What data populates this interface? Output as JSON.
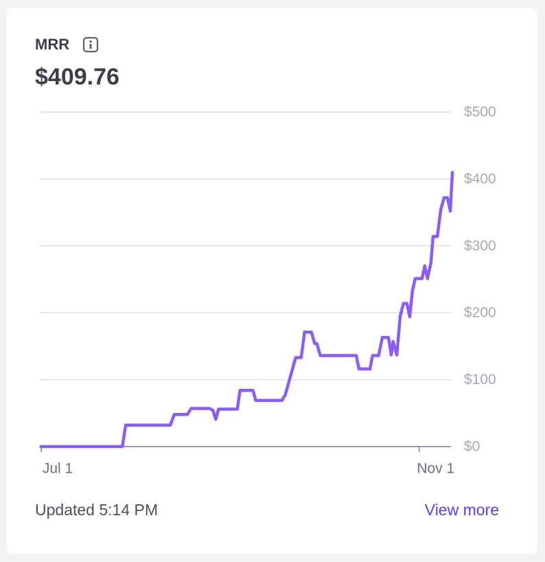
{
  "chart_data": {
    "type": "line",
    "title": "MRR",
    "subtitle": "$409.76",
    "x": [
      0,
      26.4,
      27.5,
      42,
      43.3,
      47.6,
      48.8,
      54.8,
      55.9,
      56.8,
      57.7,
      63.8,
      64.7,
      68.9,
      69.8,
      78.3,
      79.4,
      82.8,
      84.6,
      85.7,
      87.9,
      89,
      89.7,
      90.8,
      102.5,
      103.4,
      107,
      107.8,
      109.8,
      111,
      113,
      113.9,
      114.5,
      115.7,
      116.8,
      117.9,
      119,
      119.9,
      120.8,
      121.7,
      123.9,
      124.8,
      125.7,
      126.8,
      127.5,
      128.9,
      130,
      131.1,
      132.2,
      133.1,
      133.8
    ],
    "values": [
      0,
      0,
      32,
      32,
      48,
      48,
      57,
      57,
      54,
      41,
      56,
      56,
      84,
      84,
      69,
      69,
      77,
      133,
      133,
      171,
      171,
      154,
      154,
      136,
      136,
      116,
      116,
      136,
      136,
      163,
      163,
      137,
      157,
      137,
      195,
      214,
      214,
      194,
      233,
      251,
      251,
      270,
      251,
      275,
      314,
      314,
      354,
      372,
      372,
      352,
      409.76
    ],
    "color": "#8b5cf6",
    "xlim": [
      0,
      134
    ],
    "xticks": [
      {
        "value": 0,
        "label": "Jul 1"
      },
      {
        "value": 123,
        "label": "Nov 1"
      }
    ],
    "ylim": [
      0,
      500
    ],
    "yticks": [
      {
        "value": 0,
        "label": "$0"
      },
      {
        "value": 100,
        "label": "$100"
      },
      {
        "value": 200,
        "label": "$200"
      },
      {
        "value": 300,
        "label": "$300"
      },
      {
        "value": 400,
        "label": "$400"
      },
      {
        "value": 500,
        "label": "$500"
      }
    ],
    "grid": true
  },
  "footer": {
    "updated": "Updated 5:14 PM",
    "link": "View more"
  }
}
